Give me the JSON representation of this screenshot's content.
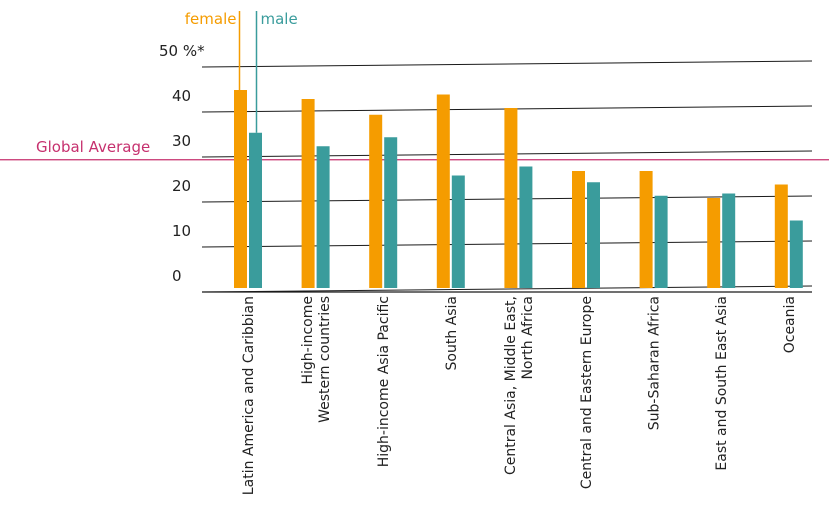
{
  "chart_data": {
    "type": "bar",
    "title": "",
    "xlabel": "",
    "ylabel": "",
    "y_unit_label": "50 %*",
    "ylim": [
      0,
      50
    ],
    "y_ticks": [
      0,
      10,
      20,
      30,
      40
    ],
    "grid": true,
    "legend_placement": "top-left",
    "categories": [
      "Latin America and Caribbian",
      "High-income Western countries",
      "High-income Asia Pacific",
      "South Asia",
      "Central Asia, Middle East, North Africa",
      "Central and Eastern Europe",
      "Sub-Saharan Africa",
      "East and South East Asia",
      "Oceania"
    ],
    "category_lines": [
      [
        "Latin America and Caribbian"
      ],
      [
        "High-income",
        "Western countries"
      ],
      [
        "High-income Asia Pacific"
      ],
      [
        "South Asia"
      ],
      [
        "Central Asia, Middle East,",
        "North Africa"
      ],
      [
        "Central and Eastern Europe"
      ],
      [
        "Sub-Saharan Africa"
      ],
      [
        "East and South East Asia"
      ],
      [
        "Oceania"
      ]
    ],
    "series": [
      {
        "name": "female",
        "color": "#f59c00",
        "values": [
          44,
          42,
          38.5,
          43,
          40,
          26,
          26,
          20,
          23
        ]
      },
      {
        "name": "male",
        "color": "#3a9c9c",
        "values": [
          34.5,
          31.5,
          33.5,
          25,
          27,
          23.5,
          20.5,
          21,
          15
        ]
      }
    ],
    "reference_line": {
      "label": "Global Average",
      "value": 28.5,
      "color": "#c6306e"
    }
  }
}
